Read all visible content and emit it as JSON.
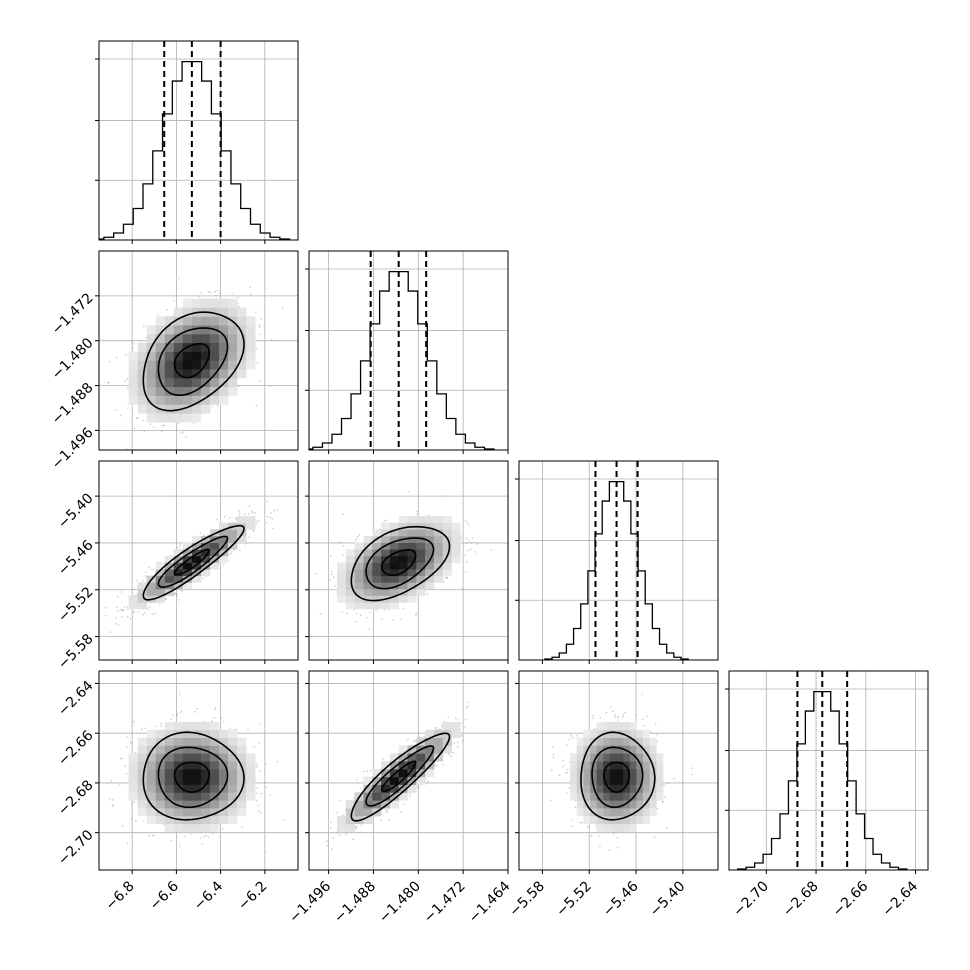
{
  "chart_data": {
    "type": "corner",
    "grid": true,
    "parameters": [
      {
        "index": 0,
        "mean": -6.53,
        "std": 0.13,
        "range": [
          -6.95,
          -6.05
        ],
        "quantiles": [
          -6.655,
          -6.53,
          -6.4
        ],
        "ticks": [
          {
            "v": -6.8,
            "label": "−6.8"
          },
          {
            "v": -6.6,
            "label": "−6.6"
          },
          {
            "v": -6.4,
            "label": "−6.4"
          },
          {
            "v": -6.2,
            "label": "−6.2"
          }
        ]
      },
      {
        "index": 1,
        "mean": -1.4835,
        "std": 0.005,
        "range": [
          -1.4995,
          -1.464
        ],
        "quantiles": [
          -1.4885,
          -1.4835,
          -1.4786
        ],
        "ticks": [
          {
            "v": -1.496,
            "label": "−1.496"
          },
          {
            "v": -1.488,
            "label": "−1.488"
          },
          {
            "v": -1.48,
            "label": "−1.480"
          },
          {
            "v": -1.472,
            "label": "−1.472"
          },
          {
            "v": -1.464,
            "label": "−1.464"
          }
        ]
      },
      {
        "index": 2,
        "mean": -5.485,
        "std": 0.027,
        "range": [
          -5.61,
          -5.355
        ],
        "quantiles": [
          -5.512,
          -5.485,
          -5.458
        ],
        "ticks": [
          {
            "v": -5.58,
            "label": "−5.58"
          },
          {
            "v": -5.52,
            "label": "−5.52"
          },
          {
            "v": -5.46,
            "label": "−5.46"
          },
          {
            "v": -5.4,
            "label": "−5.40"
          }
        ]
      },
      {
        "index": 3,
        "mean": -2.6775,
        "std": 0.01,
        "range": [
          -2.715,
          -2.635
        ],
        "quantiles": [
          -2.6875,
          -2.6775,
          -2.6675
        ],
        "ticks": [
          {
            "v": -2.7,
            "label": "−2.70"
          },
          {
            "v": -2.68,
            "label": "−2.68"
          },
          {
            "v": -2.66,
            "label": "−2.66"
          },
          {
            "v": -2.64,
            "label": "−2.64"
          }
        ]
      }
    ],
    "correlations": {
      "1-0": 0.35,
      "2-0": 0.9,
      "2-1": 0.45,
      "3-0": 0.0,
      "3-1": 0.9,
      "3-2": 0.0
    },
    "contour_sigmas": [
      0.6,
      1.2,
      1.75
    ],
    "diagonal_type": "histogram",
    "off_diagonal_type": "2d-histogram-contour-scatter"
  }
}
